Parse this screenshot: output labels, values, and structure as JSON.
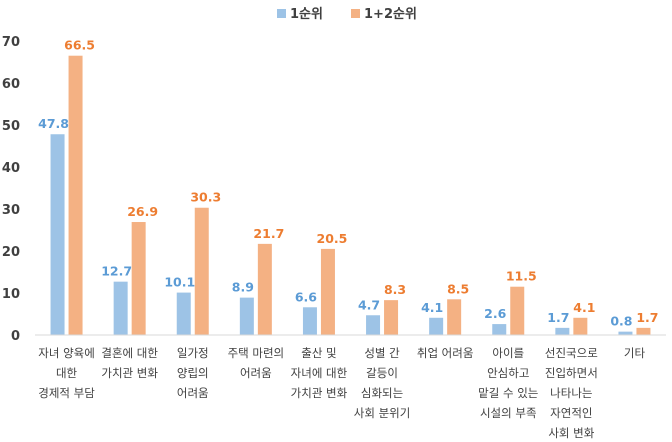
{
  "chart_data": {
    "type": "bar",
    "categories": [
      [
        "자녀 양육에",
        "대한",
        "경제적 부담"
      ],
      [
        "결혼에 대한",
        "가치관 변화"
      ],
      [
        "일가정",
        "양립의",
        "어려움"
      ],
      [
        "주택 마련의",
        "어려움"
      ],
      [
        "출산 및",
        "자녀에 대한",
        "가치관 변화"
      ],
      [
        "성별 간",
        "갈등이",
        "심화되는",
        "사회 분위기"
      ],
      [
        "취업 어려움"
      ],
      [
        "아이를",
        "안심하고",
        "맡길 수 있는",
        "시설의 부족"
      ],
      [
        "선진국으로",
        "진입하면서",
        "나타나는",
        "자연적인",
        "사회 변화"
      ],
      [
        "기타"
      ]
    ],
    "series": [
      {
        "name": "1순위",
        "color": "#9DC3E6",
        "label_color": "#5B9BD5",
        "values": [
          47.8,
          12.7,
          10.1,
          8.9,
          6.6,
          4.7,
          4.1,
          2.6,
          1.7,
          0.8
        ]
      },
      {
        "name": "1+2순위",
        "color": "#F4B183",
        "label_color": "#ED7D31",
        "values": [
          66.5,
          26.9,
          30.3,
          21.7,
          20.5,
          8.3,
          8.5,
          11.5,
          4.1,
          1.7
        ]
      }
    ],
    "yticks": [
      "0",
      "10",
      "20",
      "30",
      "40",
      "50",
      "60",
      "70"
    ],
    "ylim": [
      0,
      70
    ],
    "grid": false,
    "legend_position": "top-center"
  }
}
